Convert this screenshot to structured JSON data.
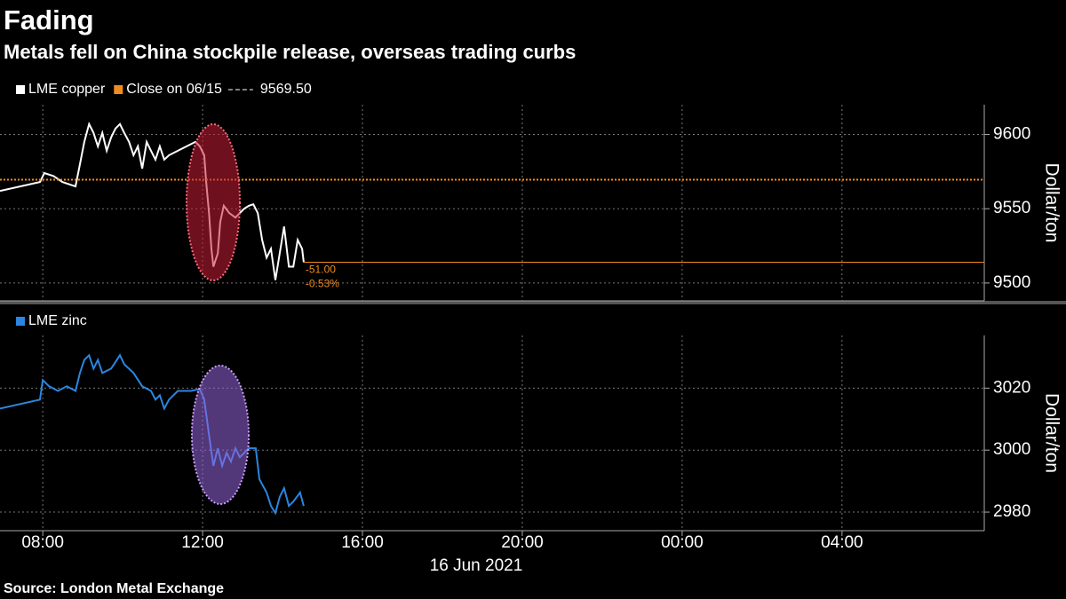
{
  "title": "Fading",
  "subtitle": "Metals fell on China stockpile release, overseas trading curbs",
  "source": "Source: London Metal Exchange",
  "x_axis": {
    "xlim": [
      6.93,
      31.56
    ],
    "xticks": [
      {
        "value": 8,
        "label": "08:00"
      },
      {
        "value": 12,
        "label": "12:00"
      },
      {
        "value": 16,
        "label": "16:00"
      },
      {
        "value": 20,
        "label": "20:00"
      },
      {
        "value": 24,
        "label": "00:00"
      },
      {
        "value": 28,
        "label": "04:00"
      }
    ],
    "label": "16 Jun 2021"
  },
  "chart_data": [
    {
      "type": "line",
      "ylabel": "Dollar/ton",
      "grid": true,
      "ylim": [
        9488,
        9620
      ],
      "yticks": [
        9500,
        9550,
        9600
      ],
      "x": [
        6.93,
        7.93,
        8.04,
        8.27,
        8.49,
        8.82,
        8.93,
        9.04,
        9.16,
        9.27,
        9.38,
        9.49,
        9.6,
        9.71,
        9.82,
        9.93,
        10.04,
        10.16,
        10.27,
        10.38,
        10.49,
        10.6,
        10.71,
        10.82,
        10.93,
        11.04,
        11.16,
        11.38,
        11.6,
        11.82,
        11.93,
        12.04,
        12.09,
        12.16,
        12.22,
        12.27,
        12.38,
        12.44,
        12.53,
        12.67,
        12.82,
        12.93,
        13.04,
        13.16,
        13.27,
        13.38,
        13.49,
        13.6,
        13.71,
        13.82,
        13.93,
        14.04,
        14.16,
        14.27,
        14.38,
        14.49,
        14.53
      ],
      "series": [
        {
          "name": "LME copper",
          "color": "#ffffff",
          "values": [
            9562,
            9568,
            9574,
            9572,
            9568,
            9565,
            9580,
            9595,
            9607,
            9601,
            9592,
            9601,
            9589,
            9598,
            9604,
            9607,
            9601,
            9595,
            9586,
            9592,
            9577,
            9595,
            9589,
            9583,
            9592,
            9583,
            9586,
            9589,
            9592,
            9595,
            9592,
            9586,
            9568,
            9547,
            9523,
            9511,
            9520,
            9541,
            9552,
            9547,
            9544,
            9547,
            9550,
            9552,
            9553,
            9547,
            9529,
            9517,
            9523,
            9502,
            9520,
            9538,
            9511,
            9511,
            9529,
            9523,
            9514
          ]
        }
      ],
      "reference_line": {
        "label": "Close on 06/15",
        "value": 9569.5,
        "value_label": "9569.50",
        "color": "#f08c1e"
      },
      "change": {
        "value": -51,
        "label": "-51.00"
      },
      "change_pct": {
        "value": -0.53,
        "label": "-0.53%"
      }
    },
    {
      "type": "line",
      "ylabel": "Dollar/ton",
      "grid": true,
      "ylim": [
        2974,
        3037
      ],
      "yticks": [
        2980,
        3000,
        3020
      ],
      "x": [
        6.93,
        7.93,
        8.0,
        8.16,
        8.38,
        8.6,
        8.82,
        8.93,
        9.04,
        9.16,
        9.27,
        9.38,
        9.49,
        9.71,
        9.93,
        10.04,
        10.27,
        10.49,
        10.71,
        10.82,
        10.93,
        11.04,
        11.16,
        11.38,
        11.71,
        11.93,
        12.04,
        12.16,
        12.27,
        12.38,
        12.49,
        12.6,
        12.71,
        12.82,
        12.93,
        13.16,
        13.33,
        13.42,
        13.6,
        13.71,
        13.82,
        13.93,
        14.04,
        14.16,
        14.27,
        14.44,
        14.53
      ],
      "series": [
        {
          "name": "LME zinc",
          "color": "#2b86e0",
          "values": [
            3013.4,
            3016.3,
            3022.6,
            3020.6,
            3019.1,
            3020.6,
            3019.1,
            3024.9,
            3029.1,
            3030.6,
            3026.3,
            3029.1,
            3024.9,
            3026.3,
            3030.6,
            3027.7,
            3024.9,
            3020.6,
            3019.1,
            3016.3,
            3017.7,
            3013.4,
            3016.3,
            3019.1,
            3019.1,
            3019.7,
            3016.3,
            3004.9,
            2994.9,
            3000.6,
            2994.9,
            2999.1,
            2996.3,
            3000.6,
            2997.7,
            3000.6,
            3000.6,
            2990.6,
            2986.3,
            2982,
            2979.7,
            2984.9,
            2987.7,
            2982,
            2983.4,
            2986.3,
            2982
          ]
        }
      ]
    }
  ]
}
